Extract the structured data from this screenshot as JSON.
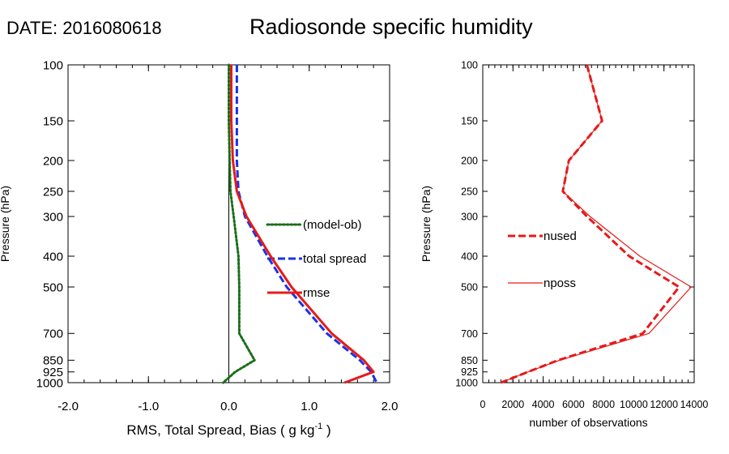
{
  "header": {
    "date_label": "DATE: 2016080618",
    "title": "Radiosonde specific humidity"
  },
  "chart_data": [
    {
      "type": "line",
      "name": "left-panel",
      "xlabel": "RMS, Total Spread, Bias ( g kg",
      "xlabel_sup": "-1",
      "xlabel_end": " )",
      "ylabel": "Pressure (hPa)",
      "xlim": [
        -2.0,
        2.0
      ],
      "ylim": [
        1000,
        100
      ],
      "y_scale": "log",
      "xticks": [
        -2.0,
        -1.0,
        0.0,
        1.0,
        2.0
      ],
      "xtick_labels": [
        "-2.0",
        "-1.0",
        "0.0",
        "1.0",
        "2.0"
      ],
      "yticks": [
        100,
        150,
        200,
        250,
        300,
        400,
        500,
        700,
        850,
        925,
        1000
      ],
      "ytick_labels": [
        "100",
        "150",
        "200",
        "250",
        "300",
        "400",
        "500",
        "700",
        "850",
        "925",
        "1000"
      ],
      "zero_line": 0.0,
      "legend_position": "center-right",
      "series": [
        {
          "name": "(model-ob)",
          "color": "#1a6e1a",
          "style": "dotted",
          "points": [
            [
              0.0,
              100
            ],
            [
              0.0,
              150
            ],
            [
              0.01,
              200
            ],
            [
              0.02,
              250
            ],
            [
              0.06,
              300
            ],
            [
              0.12,
              400
            ],
            [
              0.13,
              500
            ],
            [
              0.13,
              700
            ],
            [
              0.32,
              850
            ],
            [
              0.08,
              925
            ],
            [
              -0.07,
              1000
            ]
          ]
        },
        {
          "name": "total spread",
          "color": "#1a33e6",
          "style": "dashed",
          "points": [
            [
              0.1,
              100
            ],
            [
              0.1,
              150
            ],
            [
              0.1,
              200
            ],
            [
              0.12,
              250
            ],
            [
              0.2,
              300
            ],
            [
              0.48,
              400
            ],
            [
              0.72,
              500
            ],
            [
              1.22,
              700
            ],
            [
              1.63,
              850
            ],
            [
              1.77,
              925
            ],
            [
              1.84,
              1000
            ]
          ]
        },
        {
          "name": "rmse",
          "color": "#e61a1a",
          "style": "solid",
          "points": [
            [
              0.03,
              100
            ],
            [
              0.03,
              150
            ],
            [
              0.05,
              200
            ],
            [
              0.1,
              250
            ],
            [
              0.22,
              300
            ],
            [
              0.52,
              400
            ],
            [
              0.78,
              500
            ],
            [
              1.28,
              700
            ],
            [
              1.68,
              850
            ],
            [
              1.8,
              925
            ],
            [
              1.44,
              1000
            ]
          ]
        }
      ]
    },
    {
      "type": "line",
      "name": "right-panel",
      "xlabel": "number of observations",
      "ylabel": "Pressure (hPa)",
      "xlim": [
        0,
        14000
      ],
      "ylim": [
        1000,
        100
      ],
      "y_scale": "log",
      "xticks": [
        0,
        2000,
        4000,
        6000,
        8000,
        10000,
        12000,
        14000
      ],
      "xtick_labels": [
        "0",
        "2000",
        "4000",
        "6000",
        "8000",
        "10000",
        "12000",
        "14000"
      ],
      "yticks": [
        100,
        150,
        200,
        250,
        300,
        400,
        500,
        700,
        850,
        925,
        1000
      ],
      "ytick_labels": [
        "100",
        "150",
        "200",
        "250",
        "300",
        "400",
        "500",
        "700",
        "850",
        "925",
        "1000"
      ],
      "legend_position": "center-left",
      "series": [
        {
          "name": "nused",
          "color": "#e61a1a",
          "style": "dashed",
          "points": [
            [
              6900,
              100
            ],
            [
              7900,
              150
            ],
            [
              5700,
              200
            ],
            [
              5300,
              250
            ],
            [
              6900,
              300
            ],
            [
              9700,
              400
            ],
            [
              13000,
              500
            ],
            [
              10600,
              700
            ],
            [
              5000,
              850
            ],
            [
              3000,
              925
            ],
            [
              1200,
              1000
            ]
          ]
        },
        {
          "name": "nposs",
          "color": "#e61a1a",
          "style": "solid-thin",
          "points": [
            [
              6900,
              100
            ],
            [
              7900,
              150
            ],
            [
              5700,
              200
            ],
            [
              5300,
              250
            ],
            [
              7100,
              300
            ],
            [
              10400,
              400
            ],
            [
              13800,
              500
            ],
            [
              11000,
              700
            ],
            [
              5100,
              850
            ],
            [
              3000,
              925
            ],
            [
              1200,
              1000
            ]
          ]
        }
      ]
    }
  ]
}
